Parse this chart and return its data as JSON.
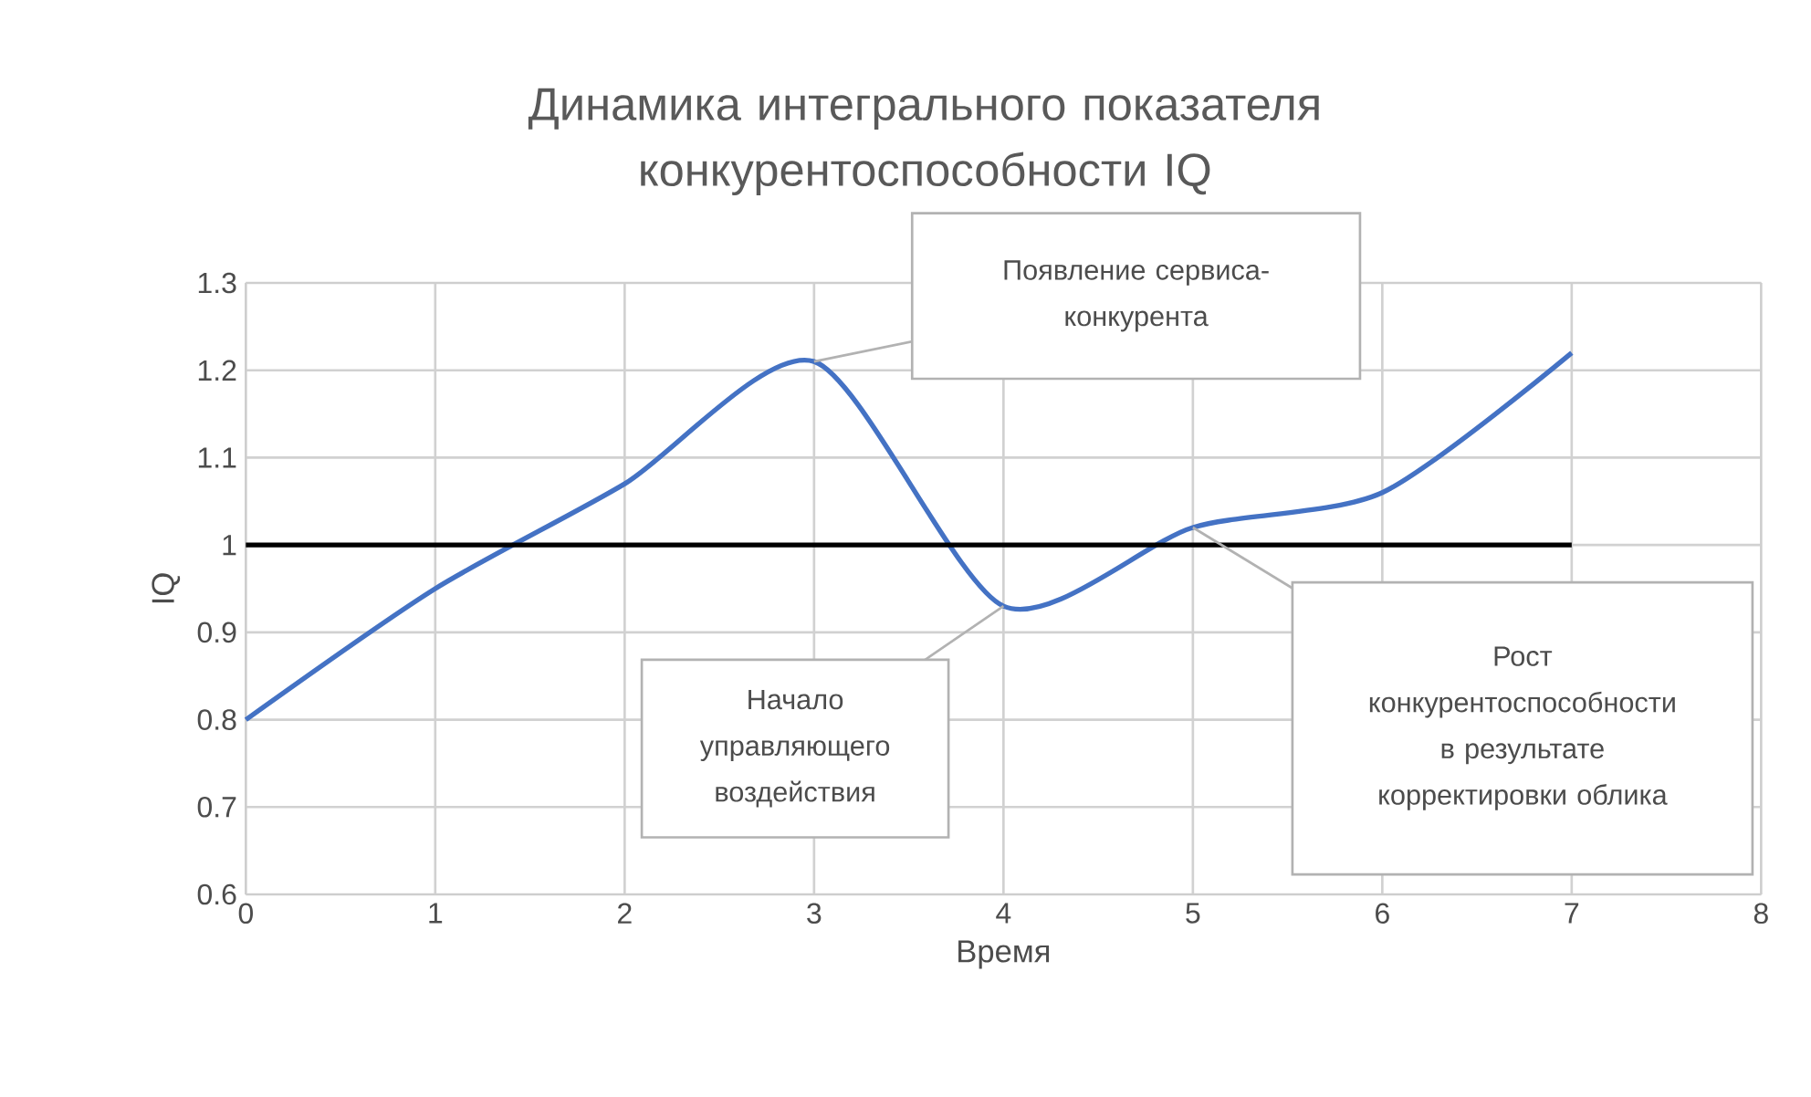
{
  "chart_data": {
    "type": "line",
    "title": "Динамика интегрального показателя конкурентоспособности  IQ",
    "xlabel": "Время",
    "ylabel": "IQ",
    "xlim": [
      0,
      8
    ],
    "xticks": [
      0,
      1,
      2,
      3,
      4,
      5,
      6,
      7,
      8
    ],
    "ylim": [
      0.6,
      1.3
    ],
    "yticks": [
      0.6,
      0.7,
      0.8,
      0.9,
      1,
      1.1,
      1.2,
      1.3
    ],
    "grid": true,
    "marker": "none",
    "line_style": "solid",
    "series": [
      {
        "color": "#4472c4",
        "x": [
          0,
          1,
          2,
          3,
          4,
          5,
          6,
          7
        ],
        "values": [
          0.8,
          0.95,
          1.07,
          1.21,
          0.93,
          1.02,
          1.06,
          1.22
        ]
      },
      {
        "color": "#000000",
        "x": [
          0,
          7
        ],
        "values": [
          1,
          1
        ]
      }
    ],
    "annotations": [
      {
        "text": "Появление сервиса-конкурента",
        "x": 3,
        "y": 1.21
      },
      {
        "text": "Начало управляющего воздействия",
        "x": 4,
        "y": 0.93
      },
      {
        "text": "Рост конкурентоспособности в результате корректировки облика",
        "x": 5,
        "y": 1.02
      }
    ]
  }
}
